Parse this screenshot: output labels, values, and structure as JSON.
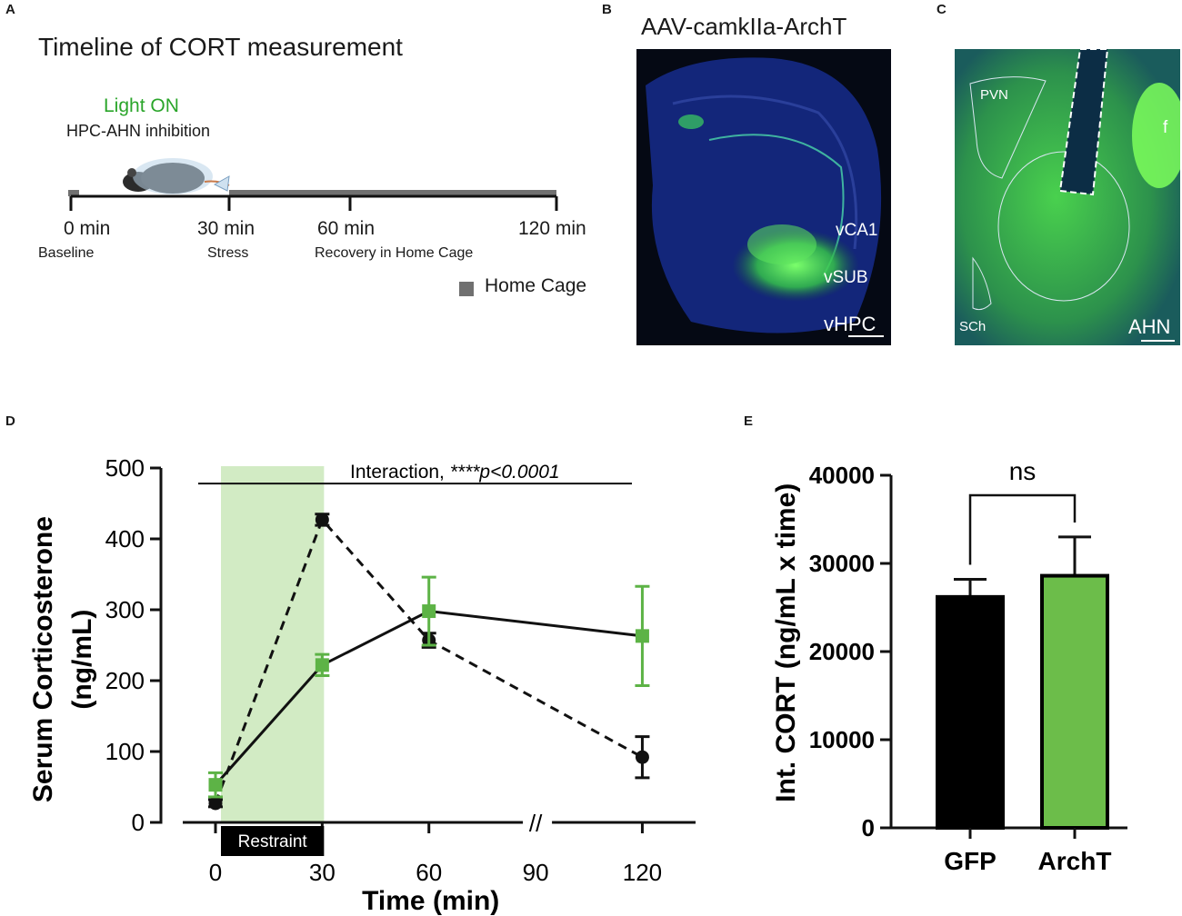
{
  "panels": {
    "a": {
      "letter": "A",
      "title": "Timeline of CORT measurement",
      "light_on": "Light ON",
      "inhibition": "HPC-AHN inhibition",
      "ticks": [
        "0 min",
        "30 min",
        "60 min",
        "120 min"
      ],
      "phases": [
        "Baseline",
        "Stress",
        "Recovery in Home Cage"
      ],
      "legend": "Home Cage",
      "legend_color": "#707070"
    },
    "b": {
      "letter": "B",
      "title": "AAV-camkIIa-ArchT",
      "labels": [
        "vCA1",
        "vSUB",
        "vHPC"
      ]
    },
    "c": {
      "letter": "C",
      "labels": [
        "PVN",
        "f",
        "SCh",
        "AHN"
      ]
    },
    "d": {
      "letter": "D"
    },
    "e": {
      "letter": "E"
    }
  },
  "chart_data": [
    {
      "type": "line",
      "panel": "D",
      "xlabel": "Time (min)",
      "ylabel_line1": "Serum Corticosterone",
      "ylabel_line2": "(ng/mL)",
      "x_ticks": [
        "0",
        "30",
        "60",
        "90",
        "120"
      ],
      "y_ticks": [
        "0",
        "100",
        "200",
        "300",
        "400",
        "500"
      ],
      "ylim": [
        0,
        500
      ],
      "x_positions_min": [
        0,
        30,
        60,
        90,
        120
      ],
      "axis_break_label": "//",
      "shaded_region": {
        "from": 0,
        "to": 30,
        "label": "Restraint",
        "color": "#d2ebc4"
      },
      "annotation_prefix": "Interaction, ",
      "annotation_stat": "****p<0.0001",
      "series": [
        {
          "name": "GFP",
          "color": "#111111",
          "style": "dashed",
          "marker": "circle",
          "x": [
            0,
            30,
            60,
            120
          ],
          "y": [
            27,
            427,
            257,
            92
          ],
          "err": [
            5,
            8,
            10,
            29
          ]
        },
        {
          "name": "ArchT",
          "color": "#5db346",
          "style": "solid",
          "marker": "square",
          "x": [
            0,
            30,
            60,
            120
          ],
          "y": [
            53,
            222,
            298,
            263
          ],
          "err": [
            17,
            15,
            48,
            70
          ]
        }
      ]
    },
    {
      "type": "bar",
      "panel": "E",
      "ylabel": "Int. CORT (ng/mL x time)",
      "categories": [
        "GFP",
        "ArchT"
      ],
      "values": [
        26200,
        28600
      ],
      "errors": [
        2000,
        4400
      ],
      "colors": [
        "#000000",
        "#6cbd4a"
      ],
      "y_ticks": [
        "0",
        "10000",
        "20000",
        "30000",
        "40000"
      ],
      "ylim": [
        0,
        40000
      ],
      "significance": "ns"
    }
  ]
}
